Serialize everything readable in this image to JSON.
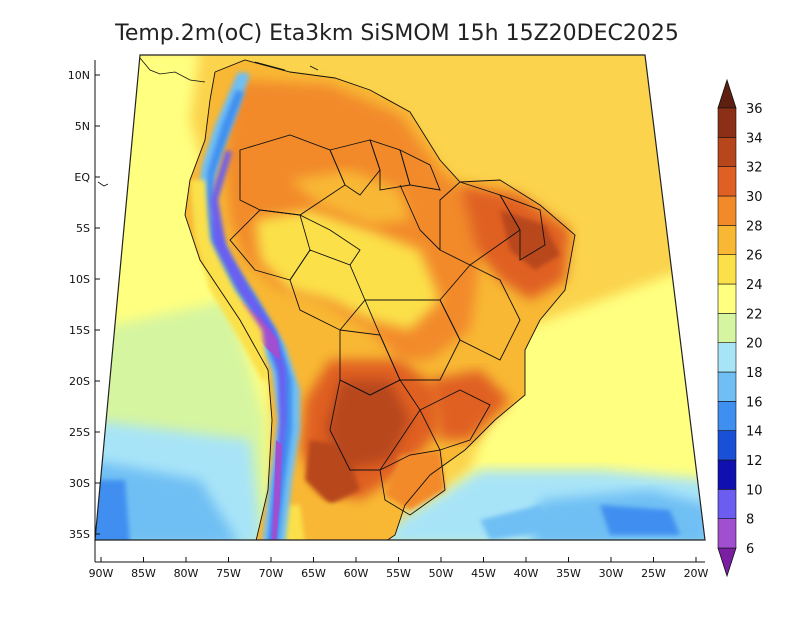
{
  "title": "Temp.2m(oC) Eta3km SiSMOM 15h 15Z20DEC2025",
  "lat_ticks": [
    {
      "label": "10N",
      "lat": 10
    },
    {
      "label": "5N",
      "lat": 5
    },
    {
      "label": "EQ",
      "lat": 0
    },
    {
      "label": "5S",
      "lat": -5
    },
    {
      "label": "10S",
      "lat": -10
    },
    {
      "label": "15S",
      "lat": -15
    },
    {
      "label": "20S",
      "lat": -20
    },
    {
      "label": "25S",
      "lat": -25
    },
    {
      "label": "30S",
      "lat": -30
    },
    {
      "label": "35S",
      "lat": -35
    }
  ],
  "lon_ticks": [
    {
      "label": "90W",
      "lon": -90
    },
    {
      "label": "85W",
      "lon": -85
    },
    {
      "label": "80W",
      "lon": -80
    },
    {
      "label": "75W",
      "lon": -75
    },
    {
      "label": "70W",
      "lon": -70
    },
    {
      "label": "65W",
      "lon": -65
    },
    {
      "label": "60W",
      "lon": -60
    },
    {
      "label": "55W",
      "lon": -55
    },
    {
      "label": "50W",
      "lon": -50
    },
    {
      "label": "45W",
      "lon": -45
    },
    {
      "label": "40W",
      "lon": -40
    },
    {
      "label": "35W",
      "lon": -35
    },
    {
      "label": "30W",
      "lon": -30
    },
    {
      "label": "25W",
      "lon": -25
    },
    {
      "label": "20W",
      "lon": -20
    }
  ],
  "colorbar": {
    "levels": [
      "6",
      "8",
      "10",
      "12",
      "14",
      "16",
      "18",
      "20",
      "22",
      "24",
      "26",
      "28",
      "30",
      "32",
      "34",
      "36"
    ],
    "colors": [
      "#7a1fa2",
      "#a04fd0",
      "#6a5df0",
      "#1010b0",
      "#1a4fd8",
      "#3f8ff0",
      "#6fbff4",
      "#a8e4f8",
      "#d6f5a0",
      "#ffff80",
      "#fbe04a",
      "#f8b834",
      "#f28a2a",
      "#e06024",
      "#b8461c",
      "#8b2f16",
      "#5e1e10"
    ]
  }
}
